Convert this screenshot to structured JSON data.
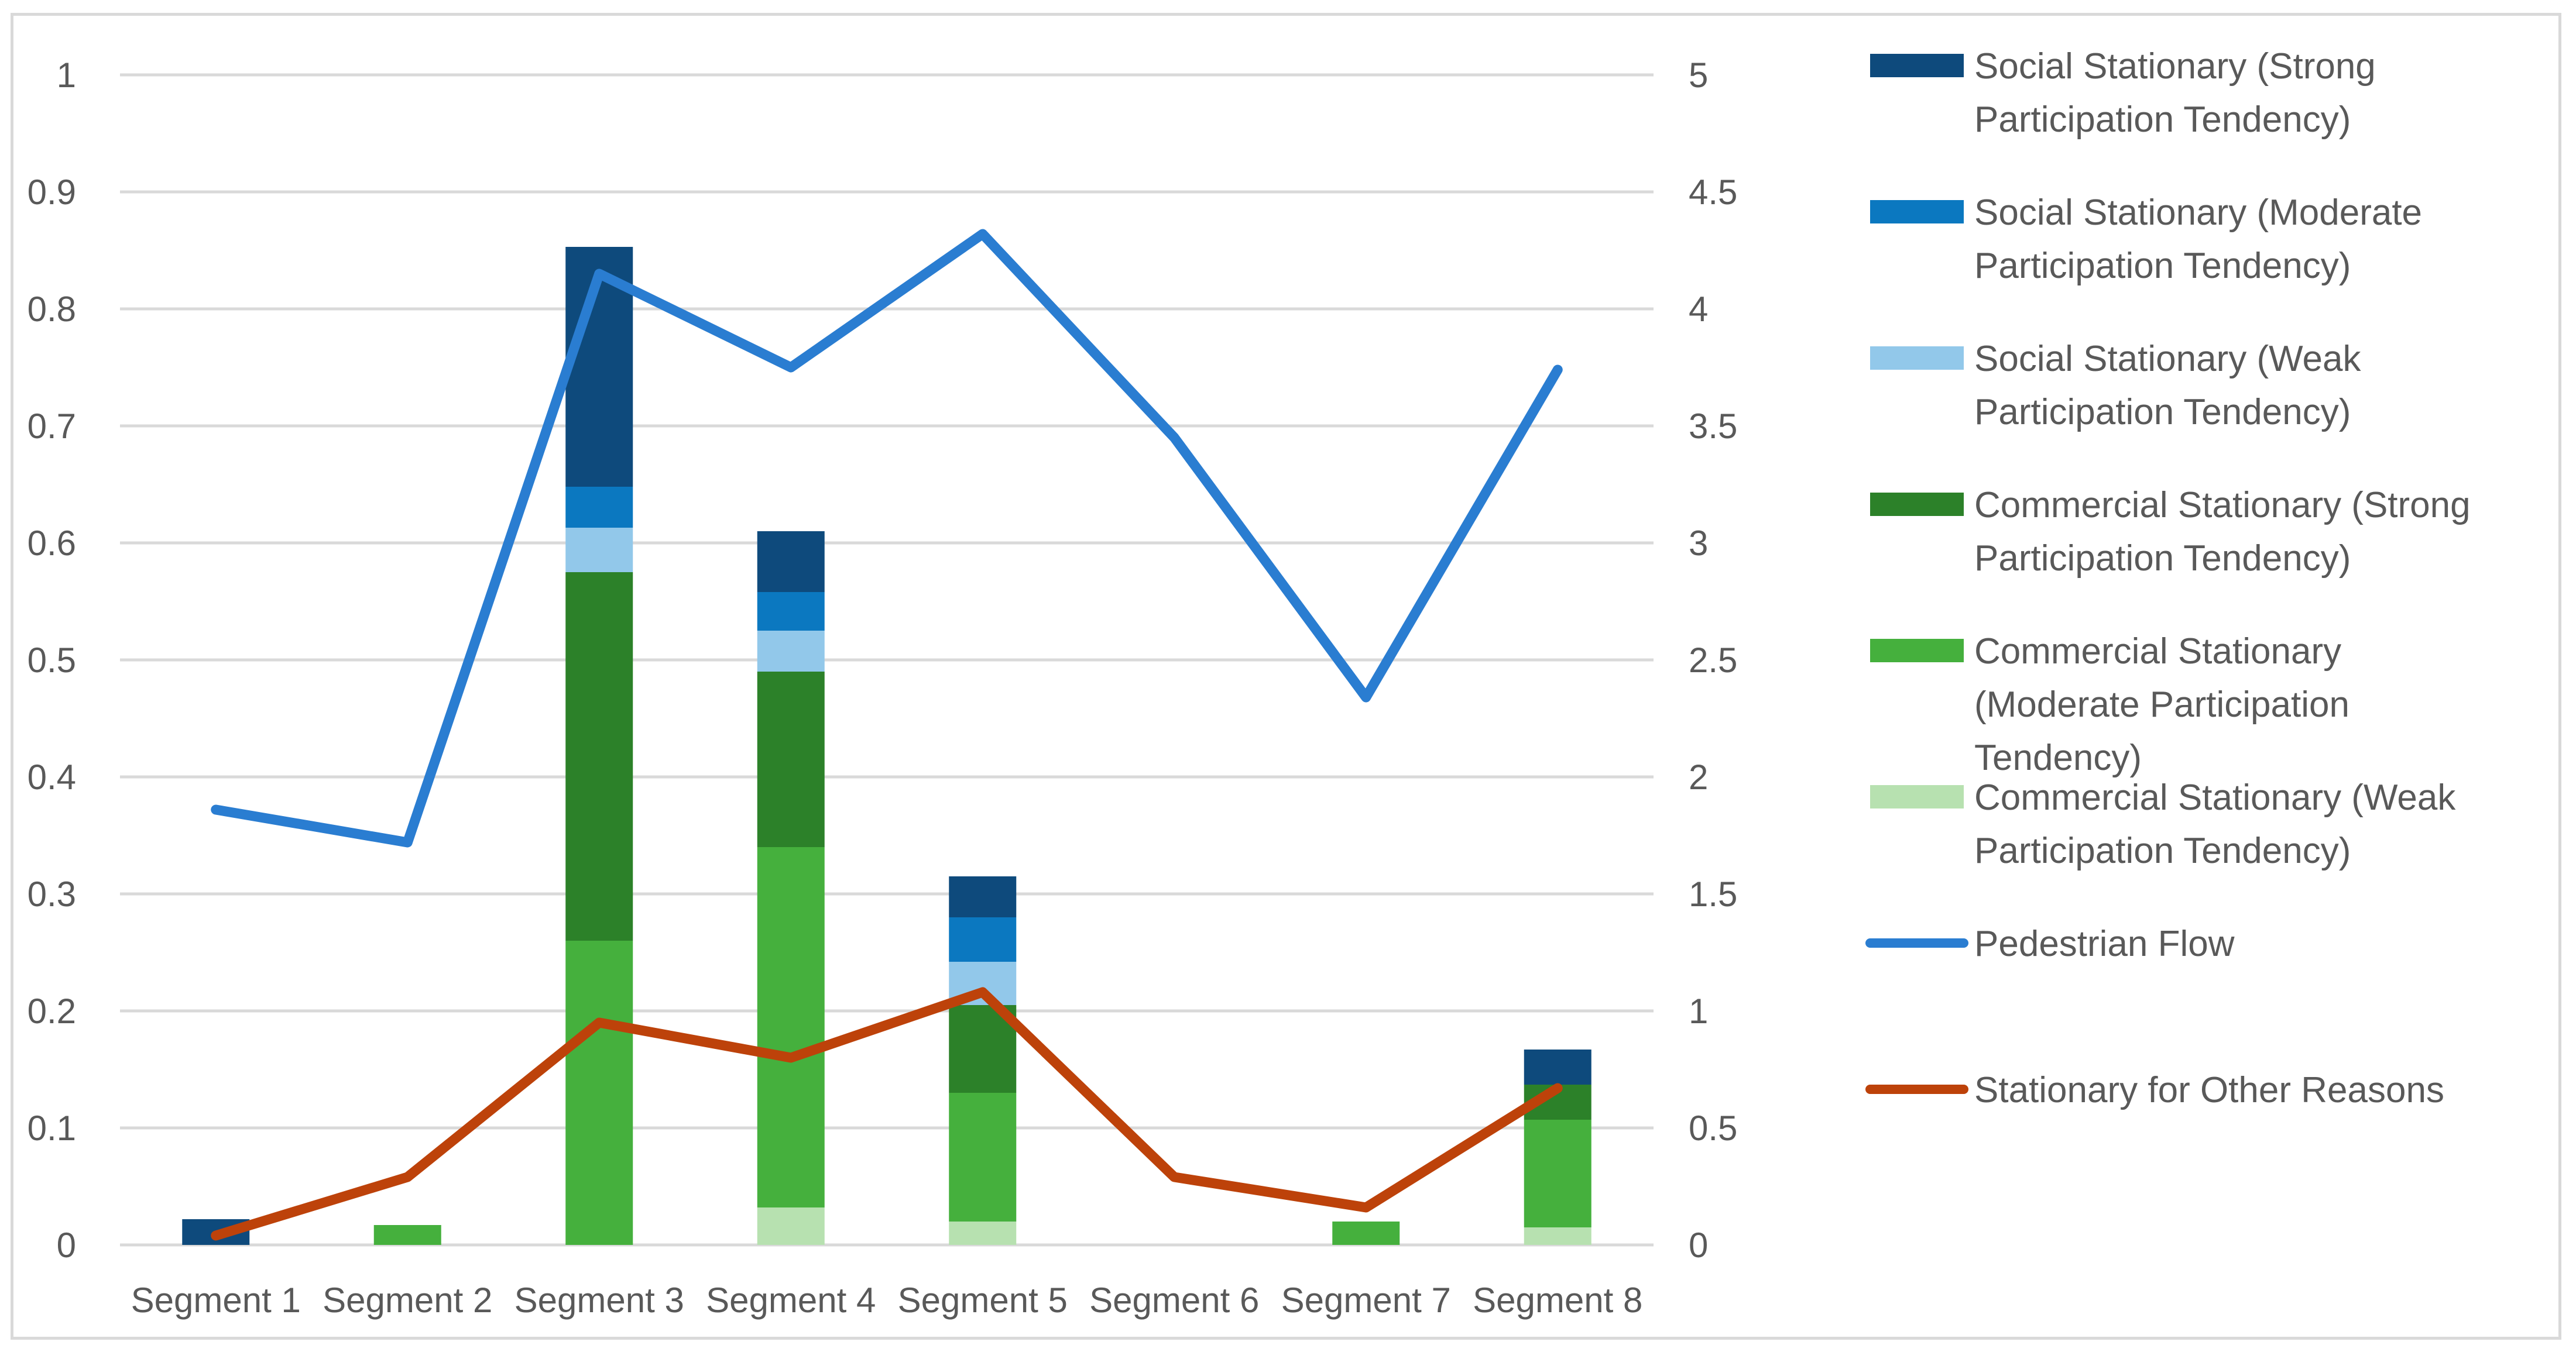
{
  "chart_data": {
    "type": "bar",
    "subtype": "stacked bar with dual-axis lines",
    "categories": [
      "Segment 1",
      "Segment 2",
      "Segment 3",
      "Segment 4",
      "Segment 5",
      "Segment 6",
      "Segment 7",
      "Segment 8"
    ],
    "y_left": {
      "min": 0,
      "max": 1,
      "step": 0.1,
      "ticks": [
        "0",
        "0.1",
        "0.2",
        "0.3",
        "0.4",
        "0.5",
        "0.6",
        "0.7",
        "0.8",
        "0.9",
        "1"
      ]
    },
    "y_right": {
      "min": 0,
      "max": 5,
      "step": 0.5,
      "ticks": [
        "0",
        "0.5",
        "1",
        "1.5",
        "2",
        "2.5",
        "3",
        "3.5",
        "4",
        "4.5",
        "5"
      ]
    },
    "gridlines": true,
    "legend_position": "right",
    "stack_series": [
      {
        "name": "Commercial Stationary (Weak Participation Tendency)",
        "legend_lines": [
          "Commercial Stationary (Weak",
          "Participation Tendency)"
        ],
        "color": "#b7e1b0",
        "values": [
          0,
          0,
          0,
          0.032,
          0.02,
          0,
          0,
          0.015
        ]
      },
      {
        "name": "Commercial Stationary (Moderate Participation Tendency)",
        "legend_lines": [
          "Commercial Stationary",
          "(Moderate Participation",
          "Tendency)"
        ],
        "color": "#45b03d",
        "values": [
          0,
          0.017,
          0.26,
          0.308,
          0.11,
          0,
          0.02,
          0.092
        ]
      },
      {
        "name": "Commercial Stationary (Strong Participation Tendency)",
        "legend_lines": [
          "Commercial Stationary (Strong",
          "Participation Tendency)"
        ],
        "color": "#2c8129",
        "values": [
          0,
          0,
          0.315,
          0.15,
          0.075,
          0,
          0,
          0.03
        ]
      },
      {
        "name": "Social Stationary (Weak Participation Tendency)",
        "legend_lines": [
          "Social Stationary (Weak",
          "Participation Tendency)"
        ],
        "color": "#92c8ea",
        "values": [
          0,
          0,
          0.038,
          0.035,
          0.037,
          0,
          0,
          0
        ]
      },
      {
        "name": "Social Stationary (Moderate Participation Tendency)",
        "legend_lines": [
          "Social Stationary (Moderate",
          "Participation Tendency)"
        ],
        "color": "#0b78c0",
        "values": [
          0,
          0,
          0.035,
          0.033,
          0.038,
          0,
          0,
          0
        ]
      },
      {
        "name": "Social Stationary (Strong Participation Tendency)",
        "legend_lines": [
          "Social Stationary (Strong",
          "Participation Tendency)"
        ],
        "color": "#0e4a7c",
        "values": [
          0.022,
          0,
          0.205,
          0.052,
          0.035,
          0,
          0,
          0.03
        ]
      }
    ],
    "line_series": [
      {
        "name": "Pedestrian Flow",
        "legend_lines": [
          "Pedestrian Flow"
        ],
        "color": "#2a7dd1",
        "axis": "right",
        "values": [
          1.86,
          1.72,
          4.15,
          3.75,
          4.32,
          3.45,
          2.34,
          3.74
        ]
      },
      {
        "name": "Stationary for Other Reasons",
        "legend_lines": [
          "Stationary for Other Reasons"
        ],
        "color": "#bd420a",
        "axis": "right",
        "values": [
          0.04,
          0.29,
          0.95,
          0.8,
          1.08,
          0.29,
          0.16,
          0.67
        ]
      }
    ],
    "legend_order": [
      "Social Stationary (Strong Participation Tendency)",
      "Social Stationary (Moderate Participation Tendency)",
      "Social Stationary (Weak Participation Tendency)",
      "Commercial Stationary (Strong Participation Tendency)",
      "Commercial Stationary (Moderate Participation Tendency)",
      "Commercial Stationary (Weak Participation Tendency)",
      "Pedestrian Flow",
      "Stationary for Other Reasons"
    ]
  }
}
